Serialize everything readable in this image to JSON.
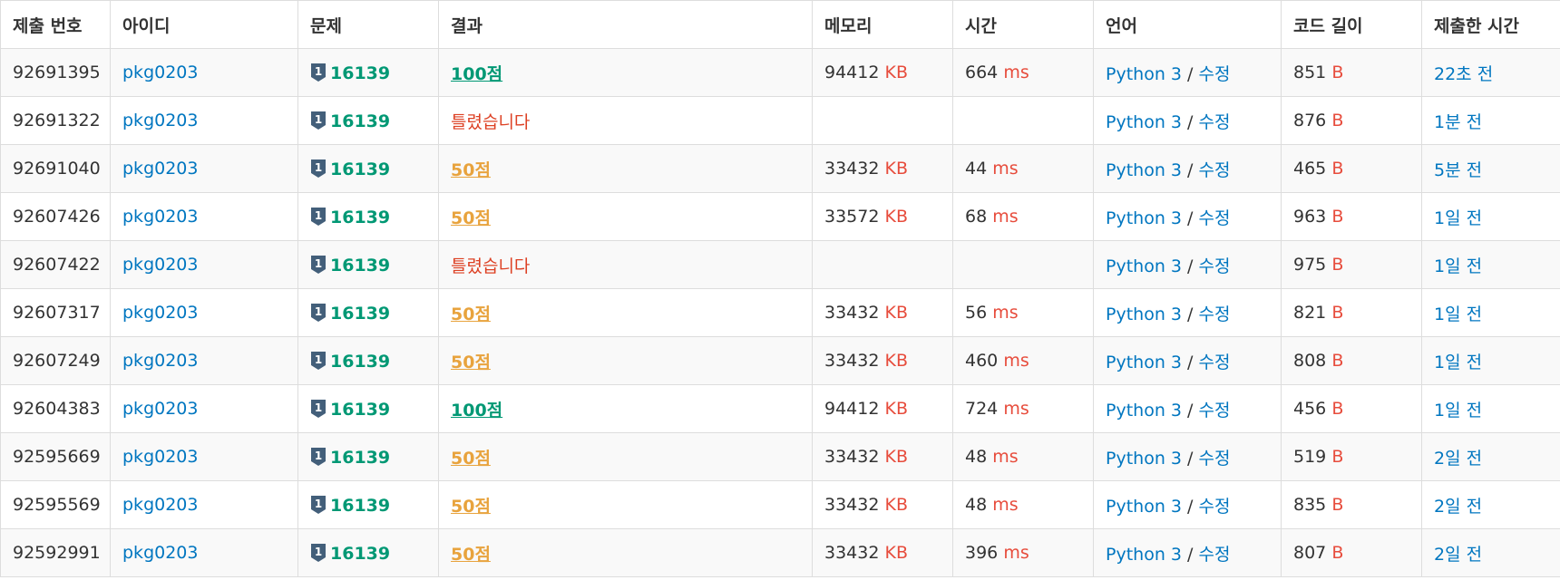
{
  "headers": [
    "제출 번호",
    "아이디",
    "문제",
    "결과",
    "메모리",
    "시간",
    "언어",
    "코드 길이",
    "제출한 시간"
  ],
  "tier_badge": {
    "icon": "silver-1-tier-icon",
    "text": "1",
    "color": "#435f7a"
  },
  "rows": [
    {
      "id": "92691395",
      "user": "pkg0203",
      "problem": "16139",
      "result": "100점",
      "result_type": "ac",
      "memory": "94412",
      "memory_unit": "KB",
      "time": "664",
      "time_unit": "ms",
      "lang": "Python 3",
      "sep": "/",
      "edit": "수정",
      "length": "851",
      "length_unit": "B",
      "submitted": "22초 전"
    },
    {
      "id": "92691322",
      "user": "pkg0203",
      "problem": "16139",
      "result": "틀렸습니다",
      "result_type": "wa",
      "memory": "",
      "memory_unit": "",
      "time": "",
      "time_unit": "",
      "lang": "Python 3",
      "sep": "/",
      "edit": "수정",
      "length": "876",
      "length_unit": "B",
      "submitted": "1분 전"
    },
    {
      "id": "92691040",
      "user": "pkg0203",
      "problem": "16139",
      "result": "50점",
      "result_type": "partial",
      "memory": "33432",
      "memory_unit": "KB",
      "time": "44",
      "time_unit": "ms",
      "lang": "Python 3",
      "sep": "/",
      "edit": "수정",
      "length": "465",
      "length_unit": "B",
      "submitted": "5분 전"
    },
    {
      "id": "92607426",
      "user": "pkg0203",
      "problem": "16139",
      "result": "50점",
      "result_type": "partial",
      "memory": "33572",
      "memory_unit": "KB",
      "time": "68",
      "time_unit": "ms",
      "lang": "Python 3",
      "sep": "/",
      "edit": "수정",
      "length": "963",
      "length_unit": "B",
      "submitted": "1일 전"
    },
    {
      "id": "92607422",
      "user": "pkg0203",
      "problem": "16139",
      "result": "틀렸습니다",
      "result_type": "wa",
      "memory": "",
      "memory_unit": "",
      "time": "",
      "time_unit": "",
      "lang": "Python 3",
      "sep": "/",
      "edit": "수정",
      "length": "975",
      "length_unit": "B",
      "submitted": "1일 전"
    },
    {
      "id": "92607317",
      "user": "pkg0203",
      "problem": "16139",
      "result": "50점",
      "result_type": "partial",
      "memory": "33432",
      "memory_unit": "KB",
      "time": "56",
      "time_unit": "ms",
      "lang": "Python 3",
      "sep": "/",
      "edit": "수정",
      "length": "821",
      "length_unit": "B",
      "submitted": "1일 전"
    },
    {
      "id": "92607249",
      "user": "pkg0203",
      "problem": "16139",
      "result": "50점",
      "result_type": "partial",
      "memory": "33432",
      "memory_unit": "KB",
      "time": "460",
      "time_unit": "ms",
      "lang": "Python 3",
      "sep": "/",
      "edit": "수정",
      "length": "808",
      "length_unit": "B",
      "submitted": "1일 전"
    },
    {
      "id": "92604383",
      "user": "pkg0203",
      "problem": "16139",
      "result": "100점",
      "result_type": "ac",
      "memory": "94412",
      "memory_unit": "KB",
      "time": "724",
      "time_unit": "ms",
      "lang": "Python 3",
      "sep": "/",
      "edit": "수정",
      "length": "456",
      "length_unit": "B",
      "submitted": "1일 전"
    },
    {
      "id": "92595669",
      "user": "pkg0203",
      "problem": "16139",
      "result": "50점",
      "result_type": "partial",
      "memory": "33432",
      "memory_unit": "KB",
      "time": "48",
      "time_unit": "ms",
      "lang": "Python 3",
      "sep": "/",
      "edit": "수정",
      "length": "519",
      "length_unit": "B",
      "submitted": "2일 전"
    },
    {
      "id": "92595569",
      "user": "pkg0203",
      "problem": "16139",
      "result": "50점",
      "result_type": "partial",
      "memory": "33432",
      "memory_unit": "KB",
      "time": "48",
      "time_unit": "ms",
      "lang": "Python 3",
      "sep": "/",
      "edit": "수정",
      "length": "835",
      "length_unit": "B",
      "submitted": "2일 전"
    },
    {
      "id": "92592991",
      "user": "pkg0203",
      "problem": "16139",
      "result": "50점",
      "result_type": "partial",
      "memory": "33432",
      "memory_unit": "KB",
      "time": "396",
      "time_unit": "ms",
      "lang": "Python 3",
      "sep": "/",
      "edit": "수정",
      "length": "807",
      "length_unit": "B",
      "submitted": "2일 전"
    }
  ]
}
